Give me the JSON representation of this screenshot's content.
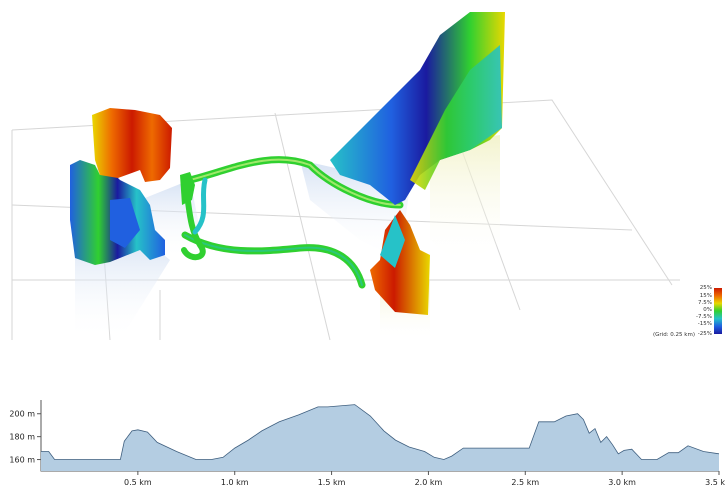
{
  "legend": {
    "labels": [
      "25%",
      "15%",
      "7.5%",
      "0%",
      "-7.5%",
      "-15%",
      "-25%"
    ],
    "grid_note": "(Grid: 0.25 km)",
    "colors": [
      "#cc1a00",
      "#ee6a00",
      "#e9d800",
      "#30d030",
      "#26c2c8",
      "#2060e0",
      "#1a1aa0"
    ]
  },
  "chart_data": {
    "type": "area",
    "title": "",
    "xlabel": "",
    "ylabel": "",
    "fill_color": "#b4cde2",
    "line_color": "#3f5f7f",
    "xlim": [
      0,
      3.5
    ],
    "ylim": [
      150,
      212
    ],
    "x_ticks": [
      0.5,
      1.0,
      1.5,
      2.0,
      2.5,
      3.0,
      3.5
    ],
    "x_tick_labels": [
      "0.5 km",
      "1.0 km",
      "1.5 km",
      "2.0 km",
      "2.5 km",
      "3.0 km",
      "3.5 km"
    ],
    "y_ticks": [
      160,
      180,
      200
    ],
    "y_tick_labels": [
      "160 m",
      "180 m",
      "200 m"
    ],
    "series": [
      {
        "x": [
          0,
          0.04,
          0.07,
          0.13,
          0.3,
          0.41,
          0.43,
          0.47,
          0.5,
          0.55,
          0.6,
          0.7,
          0.8,
          0.88,
          0.94,
          1.0,
          1.07,
          1.14,
          1.23,
          1.33,
          1.43,
          1.48,
          1.62,
          1.7,
          1.77,
          1.83,
          1.9,
          1.98,
          2.03,
          2.08,
          2.12,
          2.18,
          2.3,
          2.43,
          2.52,
          2.57,
          2.65,
          2.71,
          2.77,
          2.8,
          2.83,
          2.86,
          2.89,
          2.92,
          2.95,
          2.98,
          3.01,
          3.05,
          3.1,
          3.18,
          3.24,
          3.29,
          3.34,
          3.42,
          3.5
        ],
        "y": [
          167,
          167,
          160,
          160,
          160,
          160,
          176,
          185,
          186,
          184,
          175,
          167,
          160,
          160,
          162,
          170,
          177,
          185,
          193,
          199,
          206,
          206,
          208,
          198,
          185,
          177,
          171,
          167,
          162,
          160,
          163,
          170,
          170,
          170,
          170,
          193,
          193,
          198,
          200,
          195,
          183,
          187,
          175,
          180,
          173,
          165,
          168,
          169,
          160,
          160,
          166,
          166,
          172,
          167,
          165
        ]
      }
    ]
  }
}
